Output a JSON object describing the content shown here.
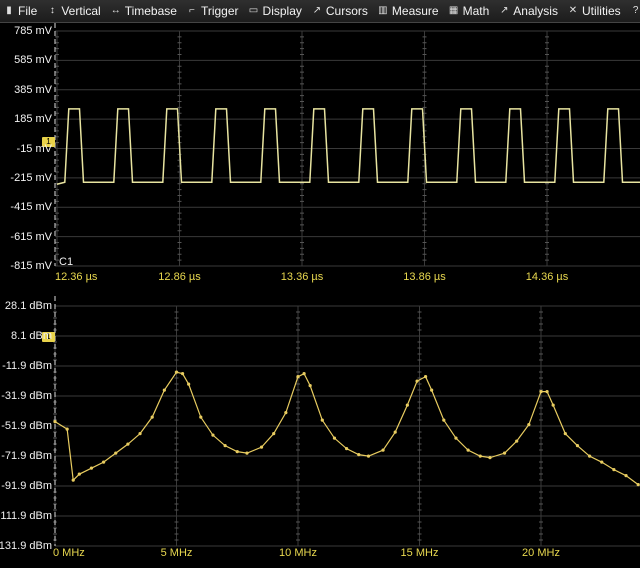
{
  "menu": [
    {
      "label": "File",
      "icon": "file-icon",
      "glyph": "▮"
    },
    {
      "label": "Vertical",
      "icon": "vertical-arrows-icon",
      "glyph": "↕"
    },
    {
      "label": "Timebase",
      "icon": "horizontal-arrows-icon",
      "glyph": "↔"
    },
    {
      "label": "Trigger",
      "icon": "trigger-icon",
      "glyph": "⌐"
    },
    {
      "label": "Display",
      "icon": "display-icon",
      "glyph": "▭"
    },
    {
      "label": "Cursors",
      "icon": "cursor-icon",
      "glyph": "↗"
    },
    {
      "label": "Measure",
      "icon": "measure-icon",
      "glyph": "▥"
    },
    {
      "label": "Math",
      "icon": "math-icon",
      "glyph": "▦"
    },
    {
      "label": "Analysis",
      "icon": "analysis-icon",
      "glyph": "↗"
    },
    {
      "label": "Utilities",
      "icon": "wrench-icon",
      "glyph": "✕"
    },
    {
      "label": "Sup",
      "icon": "help-icon",
      "glyph": "?"
    }
  ],
  "colors": {
    "trace": "#e8e4a0",
    "spectrum": "#e8cc60",
    "grid": "#3a3a3a",
    "marker": "#e8d24a",
    "axis_label": "#e8d84f"
  },
  "time_pane": {
    "channel_label": "C1",
    "y_labels": [
      "785 mV",
      "585 mV",
      "385 mV",
      "185 mV",
      "-15 mV",
      "-215 mV",
      "-415 mV",
      "-615 mV",
      "-815 mV"
    ],
    "x_labels": [
      "12.36 µs",
      "12.86 µs",
      "13.36 µs",
      "13.86 µs",
      "14.36 µs"
    ],
    "y_range_mv": [
      -815,
      785
    ],
    "x_start_us": 12.36,
    "x_end_us": 14.66,
    "high_mv": 255,
    "low_mv": -245,
    "period_us": 0.2,
    "high_duration_us": 0.06,
    "first_rise_us": 12.4,
    "marker_text": "1"
  },
  "freq_pane": {
    "y_labels": [
      "28.1 dBm",
      "8.1 dBm",
      "-11.9 dBm",
      "-31.9 dBm",
      "-51.9 dBm",
      "-71.9 dBm",
      "-91.9 dBm",
      "-111.9 dBm",
      "-131.9 dBm"
    ],
    "x_labels": [
      "0 MHz",
      "5 MHz",
      "10 MHz",
      "15 MHz",
      "20 MHz"
    ],
    "y_range_dbm": [
      -131.9,
      28.1
    ],
    "x_start_mhz": 0,
    "x_end_mhz": 24,
    "marker_text": "1"
  },
  "chart_data": {
    "type": "line",
    "x": [
      0,
      0.5,
      0.75,
      1,
      1.5,
      2,
      2.5,
      3,
      3.5,
      4,
      4.5,
      5,
      5.25,
      5.5,
      6,
      6.5,
      7,
      7.5,
      7.9,
      8.5,
      9,
      9.5,
      10,
      10.25,
      10.5,
      11,
      11.5,
      12,
      12.5,
      12.9,
      13.5,
      14,
      14.5,
      14.9,
      15.25,
      15.5,
      16,
      16.5,
      17,
      17.5,
      17.9,
      18.5,
      19,
      19.5,
      20,
      20.25,
      20.5,
      21,
      21.5,
      22,
      22.5,
      23,
      23.5,
      24
    ],
    "series": [
      {
        "values": [
          -49,
          -54,
          -88,
          -84,
          -80,
          -76,
          -70,
          -64,
          -57,
          -46,
          -28,
          -16,
          -17,
          -24,
          -46,
          -58,
          -65,
          -69,
          -70,
          -66,
          -57,
          -43,
          -19,
          -17,
          -25,
          -48,
          -60,
          -67,
          -71,
          -72,
          -68,
          -56,
          -38,
          -22,
          -19,
          -28,
          -48,
          -60,
          -68,
          -72,
          -73,
          -70,
          -62,
          -51,
          -29,
          -29,
          -38,
          -57,
          -65,
          -72,
          -76,
          -81,
          -85,
          -91
        ]
      }
    ],
    "xlabel": "",
    "ylabel": "",
    "xlim": [
      0,
      24
    ],
    "ylim": [
      -131.9,
      28.1
    ],
    "grid": true
  }
}
